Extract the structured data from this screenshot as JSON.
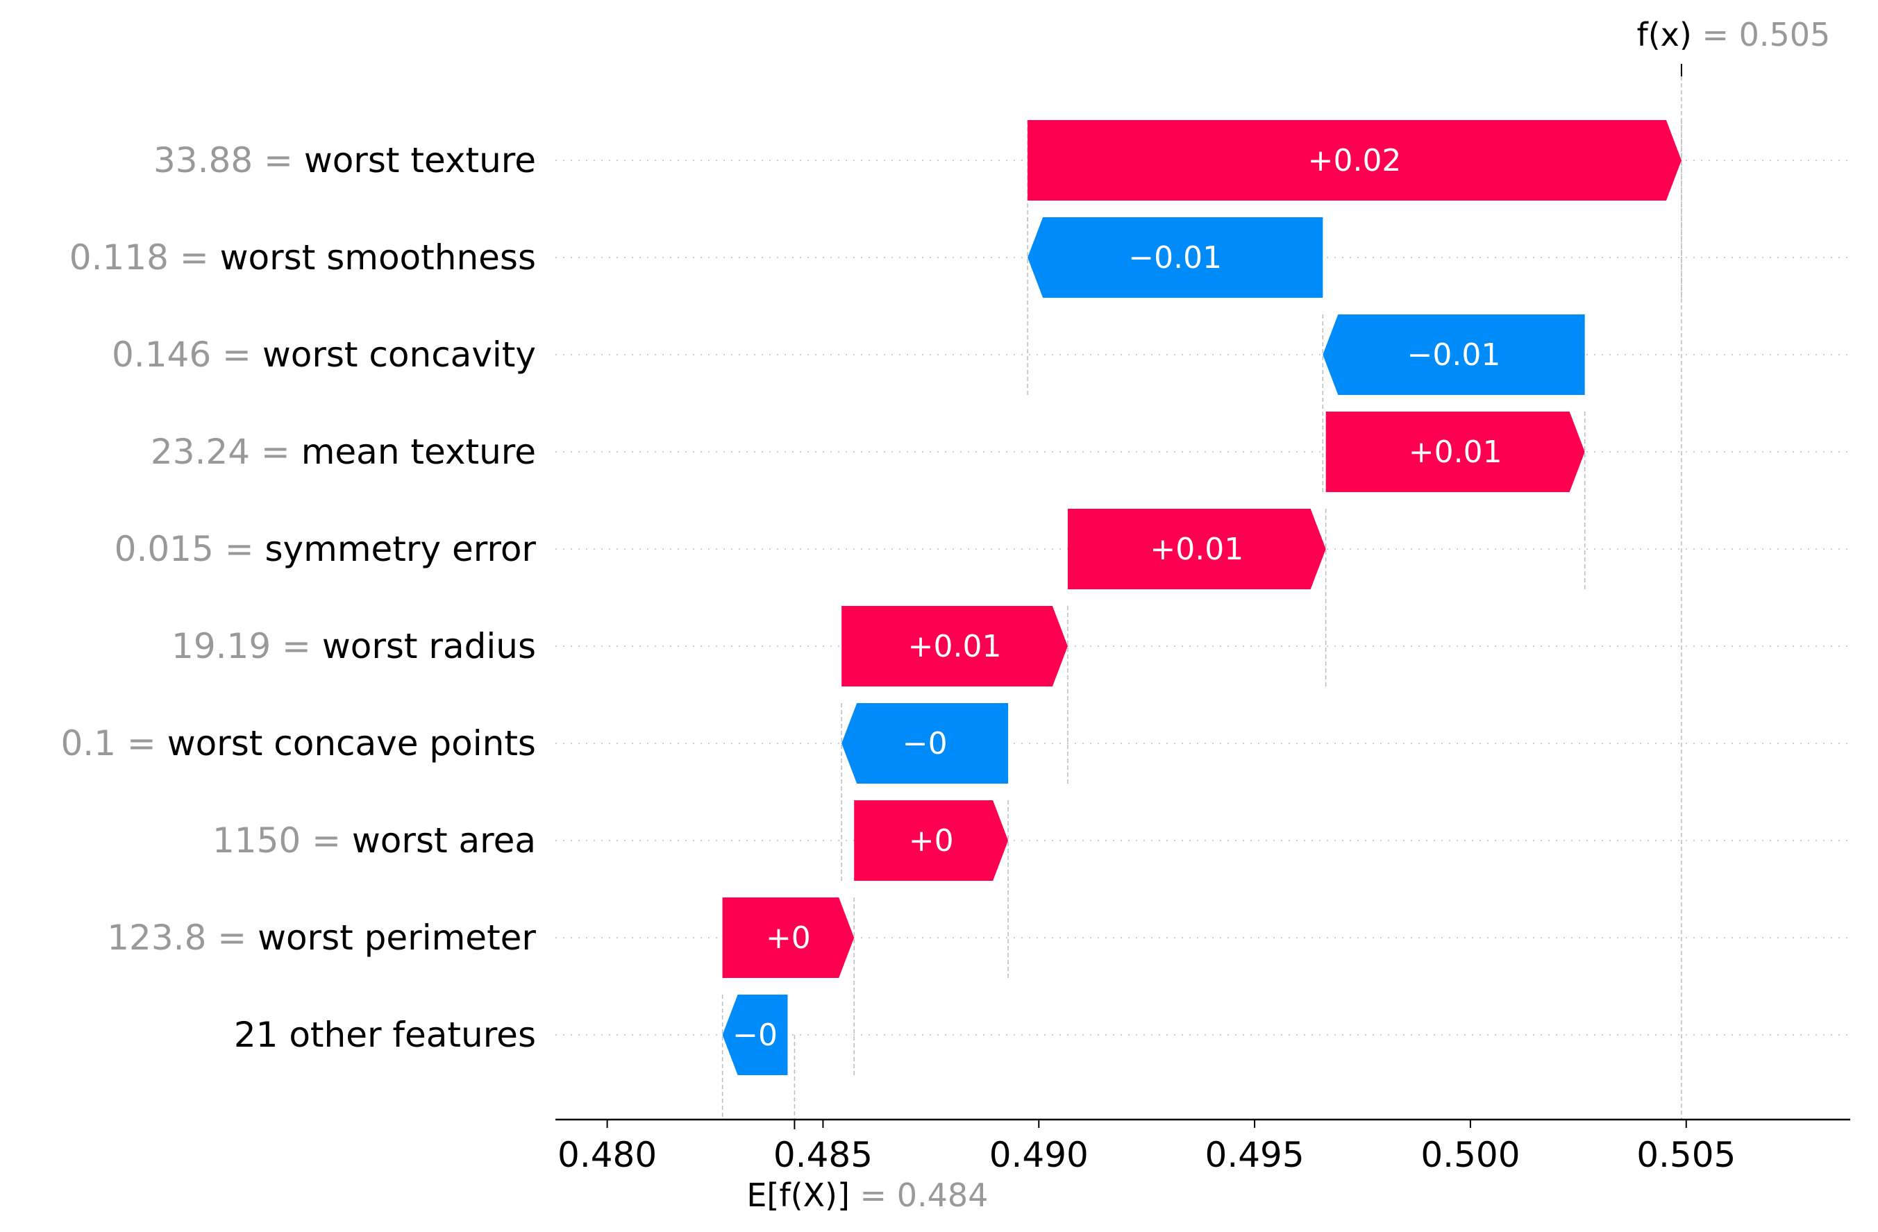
{
  "chart_data": {
    "type": "bar",
    "subtype": "waterfall",
    "title": "",
    "xlabel": "",
    "ylabel": "",
    "xlim": [
      0.4788,
      0.5088
    ],
    "xticks": [
      0.48,
      0.485,
      0.49,
      0.495,
      0.5,
      0.505
    ],
    "xtick_labels": [
      "0.480",
      "0.485",
      "0.490",
      "0.495",
      "0.500",
      "0.505"
    ],
    "grid": false,
    "colors": {
      "positive": "#ff0051",
      "negative": "#008bfb",
      "value_text": "#999999"
    },
    "fx": {
      "label": "f(x)",
      "eq": " = ",
      "value": "0.505",
      "x": 0.50489
    },
    "base": {
      "label": "E[f(X)]",
      "eq": " = ",
      "value": "0.484",
      "x": 0.48434
    },
    "features": [
      {
        "value_text": "33.88",
        "name": "worst texture",
        "start": 0.48974,
        "end": 0.50489,
        "label": "+0.02"
      },
      {
        "value_text": "0.118",
        "name": "worst smoothness",
        "start": 0.49658,
        "end": 0.48974,
        "label": "−0.01"
      },
      {
        "value_text": "0.146",
        "name": "worst concavity",
        "start": 0.50265,
        "end": 0.49658,
        "label": "−0.01"
      },
      {
        "value_text": "23.24",
        "name": "mean texture",
        "start": 0.49665,
        "end": 0.50265,
        "label": "+0.01"
      },
      {
        "value_text": "0.015",
        "name": "symmetry error",
        "start": 0.49067,
        "end": 0.49665,
        "label": "+0.01"
      },
      {
        "value_text": "19.19",
        "name": "worst radius",
        "start": 0.48543,
        "end": 0.49067,
        "label": "+0.01"
      },
      {
        "value_text": "0.1",
        "name": "worst concave points",
        "start": 0.48929,
        "end": 0.48543,
        "label": "−0"
      },
      {
        "value_text": "1150",
        "name": "worst area",
        "start": 0.48572,
        "end": 0.48929,
        "label": "+0"
      },
      {
        "value_text": "123.8",
        "name": "worst perimeter",
        "start": 0.48267,
        "end": 0.48572,
        "label": "+0"
      },
      {
        "value_text": "",
        "name": "21 other features",
        "start": 0.48418,
        "end": 0.48267,
        "label": "−0"
      }
    ]
  }
}
